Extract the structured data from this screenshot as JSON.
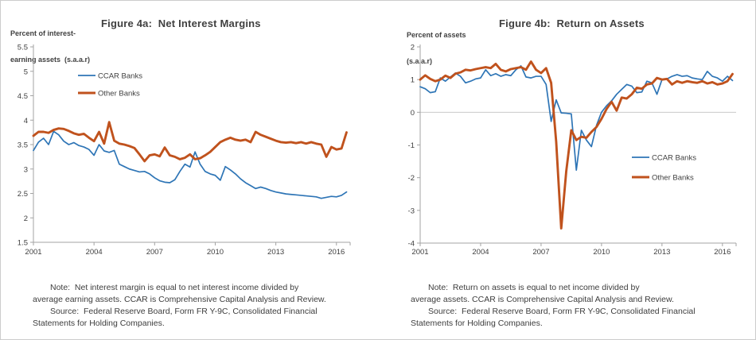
{
  "page": {
    "background": "#ffffff",
    "border_color": "#cccccc",
    "text_color": "#404040",
    "axis_color": "#a3a3a3"
  },
  "chart_data": [
    {
      "type": "line",
      "title": "Figure 4a:  Net Interest Margins",
      "ylabel_lines": [
        "Percent of interest-",
        "earning assets  (s.a.a.r)"
      ],
      "x": {
        "start": 2001,
        "step": 0.25
      },
      "xlim": [
        2001,
        2016.6
      ],
      "ylim": [
        1.5,
        5.5
      ],
      "y_ticks": [
        "5.5",
        "5",
        "4.5",
        "4",
        "3.5",
        "3",
        "2.5",
        "2",
        "1.5"
      ],
      "x_ticks": [
        "2001",
        "2004",
        "2007",
        "2010",
        "2013",
        "2016"
      ],
      "grid": false,
      "zero_line": false,
      "legend_position": "upper-left-inside",
      "series": [
        {
          "name": "CCAR Banks",
          "color": "#2e75b6",
          "width": 1.7,
          "values": [
            3.38,
            3.55,
            3.63,
            3.5,
            3.77,
            3.7,
            3.57,
            3.5,
            3.54,
            3.48,
            3.45,
            3.4,
            3.28,
            3.5,
            3.37,
            3.34,
            3.38,
            3.1,
            3.05,
            3.0,
            2.97,
            2.94,
            2.95,
            2.9,
            2.82,
            2.76,
            2.73,
            2.72,
            2.78,
            2.95,
            3.1,
            3.04,
            3.35,
            3.1,
            2.95,
            2.9,
            2.87,
            2.77,
            3.05,
            2.98,
            2.9,
            2.8,
            2.72,
            2.66,
            2.6,
            2.63,
            2.6,
            2.56,
            2.53,
            2.51,
            2.49,
            2.48,
            2.47,
            2.46,
            2.45,
            2.44,
            2.43,
            2.4,
            2.42,
            2.44,
            2.43,
            2.46,
            2.53
          ]
        },
        {
          "name": "Other Banks",
          "color": "#c0521d",
          "width": 2.9,
          "values": [
            3.68,
            3.76,
            3.76,
            3.74,
            3.8,
            3.83,
            3.82,
            3.78,
            3.73,
            3.7,
            3.72,
            3.64,
            3.57,
            3.76,
            3.52,
            3.96,
            3.58,
            3.52,
            3.5,
            3.47,
            3.43,
            3.3,
            3.16,
            3.28,
            3.3,
            3.26,
            3.44,
            3.28,
            3.25,
            3.2,
            3.23,
            3.3,
            3.2,
            3.22,
            3.28,
            3.35,
            3.45,
            3.55,
            3.6,
            3.64,
            3.6,
            3.58,
            3.6,
            3.55,
            3.76,
            3.7,
            3.66,
            3.62,
            3.58,
            3.55,
            3.54,
            3.55,
            3.53,
            3.55,
            3.52,
            3.55,
            3.52,
            3.5,
            3.25,
            3.45,
            3.4,
            3.42,
            3.75
          ]
        }
      ],
      "note_lines": [
        "Note:  Net interest margin is equal to net interest income divided by",
        "average earning assets. CCAR is Comprehensive Capital Analysis and Review.",
        "Source:  Federal Reserve Board, Form FR Y-9C, Consolidated Financial",
        "Statements for Holding Companies."
      ]
    },
    {
      "type": "line",
      "title": "Figure 4b:  Return on Assets",
      "ylabel_lines": [
        "Percent of assets",
        "(s.a.a.r)"
      ],
      "x": {
        "start": 2001,
        "step": 0.25
      },
      "xlim": [
        2001,
        2016.6
      ],
      "ylim": [
        -4,
        2
      ],
      "y_ticks": [
        "2",
        "1",
        "0",
        "-1",
        "-2",
        "-3",
        "-4"
      ],
      "x_ticks": [
        "2001",
        "2004",
        "2007",
        "2010",
        "2013",
        "2016"
      ],
      "grid": false,
      "zero_line": true,
      "legend_position": "middle-right-inside",
      "series": [
        {
          "name": "CCAR Banks",
          "color": "#2e75b6",
          "width": 1.7,
          "values": [
            0.78,
            0.72,
            0.6,
            0.63,
            1.05,
            0.95,
            1.08,
            1.2,
            1.1,
            0.9,
            0.95,
            1.02,
            1.05,
            1.3,
            1.12,
            1.18,
            1.1,
            1.15,
            1.12,
            1.3,
            1.42,
            1.08,
            1.05,
            1.1,
            1.1,
            0.85,
            -0.28,
            0.38,
            -0.02,
            -0.03,
            -0.05,
            -1.77,
            -0.55,
            -0.85,
            -1.05,
            -0.4,
            0.0,
            0.2,
            0.35,
            0.55,
            0.7,
            0.85,
            0.8,
            0.6,
            0.62,
            0.95,
            0.9,
            0.55,
            1.0,
            1.02,
            1.1,
            1.15,
            1.1,
            1.12,
            1.05,
            1.02,
            1.0,
            1.25,
            1.1,
            1.05,
            0.95,
            1.1,
            0.97
          ]
        },
        {
          "name": "Other Banks",
          "color": "#c0521d",
          "width": 2.9,
          "values": [
            1.0,
            1.13,
            1.02,
            0.95,
            1.0,
            1.12,
            1.05,
            1.18,
            1.22,
            1.3,
            1.28,
            1.32,
            1.35,
            1.38,
            1.35,
            1.48,
            1.3,
            1.25,
            1.32,
            1.35,
            1.38,
            1.3,
            1.55,
            1.3,
            1.2,
            1.35,
            0.9,
            -0.9,
            -3.55,
            -1.8,
            -0.55,
            -0.85,
            -0.75,
            -0.78,
            -0.6,
            -0.45,
            -0.2,
            0.1,
            0.32,
            0.05,
            0.45,
            0.42,
            0.55,
            0.75,
            0.72,
            0.85,
            0.88,
            1.05,
            1.0,
            1.02,
            0.85,
            0.95,
            0.9,
            0.95,
            0.92,
            0.9,
            0.95,
            0.88,
            0.92,
            0.85,
            0.88,
            0.95,
            1.17
          ]
        }
      ],
      "note_lines": [
        "Note:  Return on assets is equal to net income divided by",
        "average assets. CCAR is Comprehensive Capital Analysis and Review.",
        "Source:  Federal Reserve Board, Form FR Y-9C, Consolidated Financial",
        "Statements for Holding Companies."
      ]
    }
  ]
}
